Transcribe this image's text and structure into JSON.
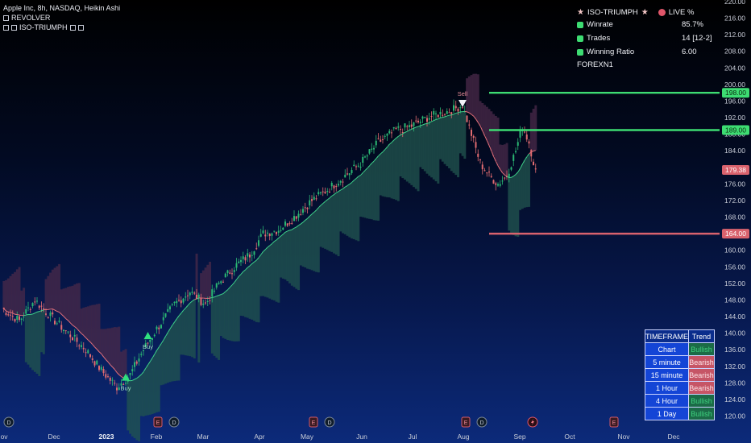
{
  "header": {
    "symbol_line": "Apple Inc, 8h, NASDAQ, Heikin Ashi",
    "indicator_1": "REVOLVER",
    "indicator_2": "ISO-TRIUMPH"
  },
  "stats_panel": {
    "title": "ISO-TRIUMPH",
    "live_label": "LIVE %",
    "rows": [
      {
        "label": "Winrate",
        "value": "85.7%"
      },
      {
        "label": "Trades",
        "value": "14 [12-2]"
      },
      {
        "label": "Winning Ratio",
        "value": "6.00"
      }
    ],
    "broker": "FOREXN1"
  },
  "price_axis": {
    "ticks": [
      "220.00",
      "216.00",
      "212.00",
      "208.00",
      "204.00",
      "200.00",
      "196.00",
      "192.00",
      "188.00",
      "184.00",
      "180.00",
      "176.00",
      "172.00",
      "168.00",
      "164.00",
      "160.00",
      "156.00",
      "152.00",
      "148.00",
      "144.00",
      "140.00",
      "136.00",
      "132.00",
      "128.00",
      "124.00",
      "120.00"
    ],
    "labels": [
      {
        "text": "198.00",
        "price": 198,
        "color": "#3ddc72",
        "text_color": "#0a2a10"
      },
      {
        "text": "189.00",
        "price": 189,
        "color": "#3ddc72",
        "text_color": "#0a2a10"
      },
      {
        "text": "179.38",
        "price": 179.38,
        "color": "#d9626d",
        "text_color": "#ffffff"
      },
      {
        "text": "164.00",
        "price": 164,
        "color": "#d9626d",
        "text_color": "#ffffff"
      }
    ]
  },
  "levels": [
    {
      "price": 198,
      "color": "#3ddc72"
    },
    {
      "price": 189,
      "color": "#3ddc72"
    },
    {
      "price": 164,
      "color": "#d9626d"
    }
  ],
  "time_axis": {
    "labels": [
      "Nov",
      "Dec",
      "2023",
      "Feb",
      "Mar",
      "Apr",
      "May",
      "Jun",
      "Jul",
      "Aug",
      "Sep",
      "Oct",
      "Nov",
      "Dec"
    ]
  },
  "signals": [
    {
      "type": "buy",
      "label": "Buy",
      "date_index": 56,
      "price": 129.5
    },
    {
      "type": "buy",
      "label": "Buy",
      "date_index": 66,
      "price": 139.5
    },
    {
      "type": "sell",
      "label": "Sell",
      "date_index": 208,
      "price": 195.5
    }
  ],
  "events": [
    {
      "icon": "D"
    },
    {
      "icon": "E"
    },
    {
      "icon": "D"
    },
    {
      "icon": "E"
    },
    {
      "icon": "D"
    },
    {
      "icon": "E"
    },
    {
      "icon": "D"
    },
    {
      "icon": "bolt"
    },
    {
      "icon": "E"
    }
  ],
  "trend_table": {
    "header": [
      "TIMEFRAME",
      "Trend"
    ],
    "rows": [
      {
        "timeframe": "Chart",
        "trend": "Bullish"
      },
      {
        "timeframe": "5 minute",
        "trend": "Bearish"
      },
      {
        "timeframe": "15 minute",
        "trend": "Bearish"
      },
      {
        "timeframe": "1 Hour",
        "trend": "Bearish"
      },
      {
        "timeframe": "4 Hour",
        "trend": "Bullish"
      },
      {
        "timeframe": "1 Day",
        "trend": "Bullish"
      }
    ]
  },
  "chart_data": {
    "type": "candlestick",
    "symbol": "Apple Inc, 8h, NASDAQ, Heikin Ashi",
    "ylim": [
      118,
      222
    ],
    "path_anchors": [
      [
        0,
        146
      ],
      [
        8,
        143
      ],
      [
        15,
        148
      ],
      [
        22,
        144
      ],
      [
        30,
        140
      ],
      [
        38,
        136
      ],
      [
        45,
        131
      ],
      [
        52,
        127
      ],
      [
        58,
        130
      ],
      [
        64,
        136
      ],
      [
        70,
        141
      ],
      [
        78,
        147
      ],
      [
        85,
        150
      ],
      [
        92,
        147
      ],
      [
        98,
        152
      ],
      [
        105,
        156
      ],
      [
        112,
        159
      ],
      [
        118,
        164
      ],
      [
        125,
        165
      ],
      [
        132,
        168
      ],
      [
        140,
        172
      ],
      [
        148,
        175
      ],
      [
        155,
        178
      ],
      [
        162,
        181
      ],
      [
        170,
        186
      ],
      [
        178,
        189
      ],
      [
        185,
        190
      ],
      [
        192,
        192
      ],
      [
        198,
        193
      ],
      [
        204,
        194
      ],
      [
        208,
        195
      ],
      [
        212,
        188
      ],
      [
        216,
        181
      ],
      [
        220,
        178
      ],
      [
        224,
        176
      ],
      [
        228,
        178
      ],
      [
        232,
        184
      ],
      [
        235,
        190
      ],
      [
        238,
        186
      ],
      [
        241,
        179
      ]
    ],
    "band_colors": {
      "bull": "#21564f",
      "bear": "#4a2a4a"
    }
  }
}
